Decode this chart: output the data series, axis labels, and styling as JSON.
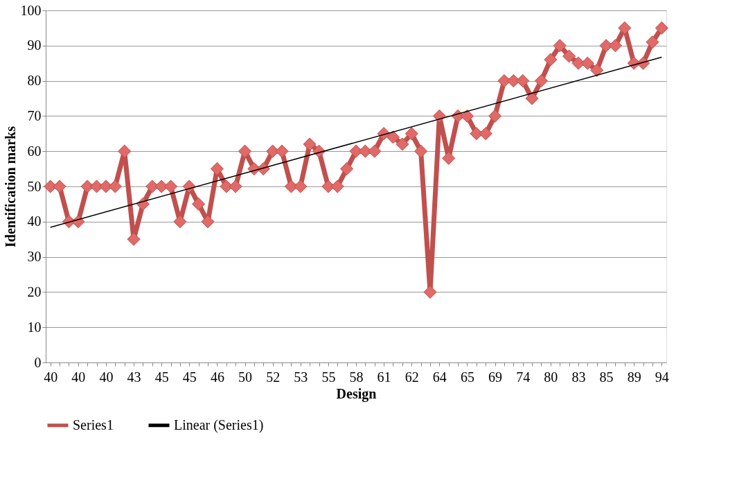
{
  "chart_data": {
    "type": "line",
    "xlabel": "Design",
    "ylabel": "Identification marks",
    "categories": [
      "40",
      null,
      null,
      "40",
      null,
      null,
      "40",
      null,
      null,
      "43",
      null,
      null,
      "45",
      null,
      null,
      "45",
      null,
      null,
      "46",
      null,
      null,
      "50",
      null,
      null,
      "52",
      null,
      null,
      "53",
      null,
      null,
      "55",
      null,
      null,
      "58",
      null,
      null,
      "61",
      null,
      null,
      "62",
      null,
      null,
      "64",
      null,
      null,
      "65",
      null,
      null,
      "69",
      null,
      null,
      "74",
      null,
      null,
      "80",
      null,
      null,
      "83",
      null,
      null,
      "85",
      null,
      null,
      "89",
      null,
      null,
      "94"
    ],
    "series": [
      {
        "name": "Series1",
        "color": "#c0504d",
        "marker": "diamond",
        "values": [
          50,
          50,
          40,
          40,
          50,
          50,
          50,
          50,
          60,
          35,
          45,
          50,
          50,
          50,
          40,
          50,
          45,
          40,
          55,
          50,
          50,
          60,
          55,
          55,
          60,
          60,
          50,
          50,
          62,
          60,
          50,
          50,
          55,
          60,
          60,
          60,
          65,
          64,
          62,
          65,
          60,
          20,
          70,
          58,
          70,
          70,
          65,
          65,
          70,
          80,
          80,
          80,
          75,
          80,
          86,
          90,
          87,
          85,
          85,
          83,
          90,
          90,
          95,
          85,
          85,
          91,
          95
        ]
      },
      {
        "name": "Linear (Series1)",
        "color": "#000000",
        "type": "line",
        "marker": "none",
        "values": [
          38.4,
          null,
          null,
          null,
          null,
          null,
          null,
          null,
          null,
          null,
          null,
          null,
          null,
          null,
          null,
          null,
          null,
          null,
          null,
          null,
          null,
          null,
          null,
          null,
          null,
          null,
          null,
          null,
          null,
          null,
          null,
          null,
          null,
          null,
          null,
          null,
          null,
          null,
          null,
          null,
          null,
          null,
          null,
          null,
          null,
          null,
          null,
          null,
          null,
          null,
          null,
          null,
          null,
          null,
          null,
          null,
          null,
          null,
          null,
          null,
          null,
          null,
          null,
          null,
          null,
          null,
          86.7
        ]
      }
    ],
    "ylim": [
      0,
      100
    ],
    "yticks": [
      0,
      10,
      20,
      30,
      40,
      50,
      60,
      70,
      80,
      90,
      100
    ],
    "grid": "y",
    "legend": "bottom"
  }
}
